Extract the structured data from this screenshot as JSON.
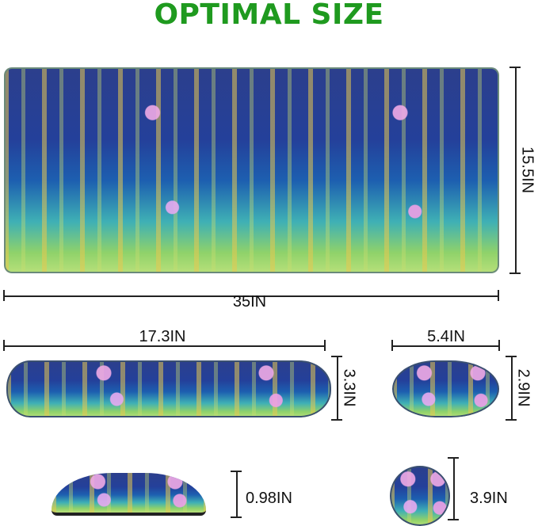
{
  "title": "OPTIMAL SIZE",
  "mouse_pad": {
    "height_label": "15.5IN",
    "width_label": "35IN"
  },
  "keyboard_wrist_rest": {
    "width_label": "17.3IN",
    "depth_label": "3.3IN",
    "height_label": "0.98IN"
  },
  "mouse_wrist_rest": {
    "width_label": "5.4IN",
    "depth_label": "2.9IN"
  },
  "coaster": {
    "diameter_label": "3.9IN"
  },
  "colors": {
    "title": "#1f9a1f",
    "lines": "#222222"
  }
}
